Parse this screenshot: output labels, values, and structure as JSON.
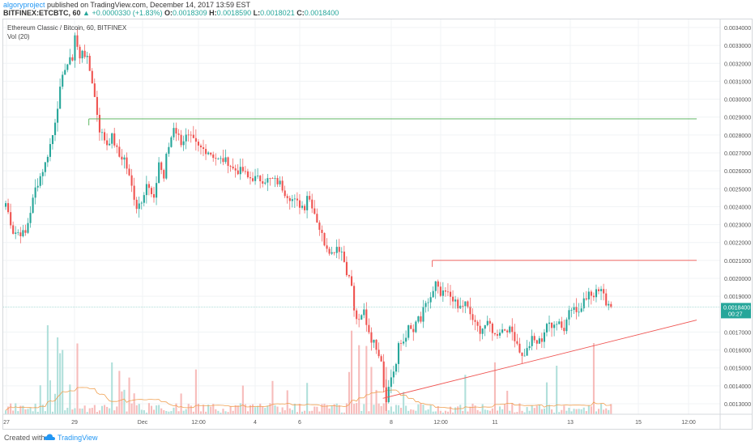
{
  "header": {
    "author": "algoryproject",
    "published": "published on TradingView.com, December 14, 2017 13:59 EST",
    "symbol_line": "BITFINEX:ETCBTC, 60",
    "change": "▲ +0.0000330 (+1.83%)",
    "o_label": "O:",
    "o_value": "0.0018309",
    "h_label": "H:",
    "h_value": "0.0018590",
    "l_label": "L:",
    "l_value": "0.0018021",
    "c_label": "C:",
    "c_value": "0.0018400"
  },
  "legend": {
    "title": "Ethereum Classic / Bitcoin, 60, BITFINEX",
    "volume": "Vol (20)"
  },
  "footer": {
    "label": "Created with",
    "brand": "TradingView",
    "logo_icon": "tradingview-cloud-icon"
  },
  "colors": {
    "up": "#26a69a",
    "down": "#ef5350",
    "resistance_green": "#4caf50",
    "resistance_red": "#ef5350",
    "trendline": "#ef5350",
    "current_price_bg": "#26a69a"
  },
  "chart_data": {
    "type": "candlestick",
    "x_ticks": [
      "27",
      "29",
      "Dec",
      "12:00",
      "4",
      "6",
      "8",
      "12:00",
      "11",
      "13",
      "15",
      "12:00"
    ],
    "y_ticks": [
      "0.0034000",
      "0.0033000",
      "0.0032000",
      "0.0031000",
      "0.0030000",
      "0.0029000",
      "0.0028000",
      "0.0027000",
      "0.0026000",
      "0.0025000",
      "0.0024000",
      "0.0023000",
      "0.0022000",
      "0.0021000",
      "0.0020000",
      "0.0019000",
      "0.0018400",
      "0.0017000",
      "0.0016000",
      "0.0015000",
      "0.0014000",
      "0.0013000"
    ],
    "ylim": [
      0.00124,
      0.00347
    ],
    "current_price": 0.00184,
    "current_price_label": "0.0018400",
    "countdown": "00:27",
    "path": [
      [
        0,
        0.00242
      ],
      [
        3,
        0.00226
      ],
      [
        8,
        0.00225
      ],
      [
        12,
        0.0025
      ],
      [
        16,
        0.00264
      ],
      [
        19,
        0.0028
      ],
      [
        22,
        0.00305
      ],
      [
        24,
        0.00318
      ],
      [
        27,
        0.00323
      ],
      [
        28,
        0.00336
      ],
      [
        30,
        0.00322
      ],
      [
        31,
        0.00328
      ],
      [
        33,
        0.00322
      ],
      [
        35,
        0.0031
      ],
      [
        38,
        0.00283
      ],
      [
        41,
        0.00275
      ],
      [
        43,
        0.00279
      ],
      [
        46,
        0.00268
      ],
      [
        48,
        0.00267
      ],
      [
        51,
        0.00251
      ],
      [
        53,
        0.0024
      ],
      [
        55,
        0.00244
      ],
      [
        57,
        0.00253
      ],
      [
        60,
        0.00243
      ],
      [
        62,
        0.00265
      ],
      [
        64,
        0.00256
      ],
      [
        65,
        0.00268
      ],
      [
        67,
        0.00279
      ],
      [
        68,
        0.00285
      ],
      [
        71,
        0.00276
      ],
      [
        73,
        0.00279
      ],
      [
        75,
        0.00278
      ],
      [
        78,
        0.00273
      ],
      [
        82,
        0.00271
      ],
      [
        86,
        0.00266
      ],
      [
        88,
        0.00266
      ],
      [
        90,
        0.00265
      ],
      [
        92,
        0.00261
      ],
      [
        94,
        0.0026
      ],
      [
        96,
        0.0026
      ],
      [
        98,
        0.00256
      ],
      [
        100,
        0.00256
      ],
      [
        104,
        0.00255
      ],
      [
        108,
        0.00255
      ],
      [
        111,
        0.00253
      ],
      [
        113,
        0.00248
      ],
      [
        116,
        0.00244
      ],
      [
        119,
        0.00241
      ],
      [
        121,
        0.0024
      ],
      [
        122,
        0.00247
      ],
      [
        124,
        0.00241
      ],
      [
        127,
        0.00228
      ],
      [
        129,
        0.0022
      ],
      [
        132,
        0.00214
      ],
      [
        134,
        0.00218
      ],
      [
        136,
        0.00215
      ],
      [
        138,
        0.00204
      ],
      [
        140,
        0.00196
      ],
      [
        141,
        0.00181
      ],
      [
        143,
        0.00175
      ],
      [
        145,
        0.00182
      ],
      [
        146,
        0.00175
      ],
      [
        148,
        0.00166
      ],
      [
        150,
        0.00162
      ],
      [
        152,
        0.00155
      ],
      [
        153,
        0.0014
      ],
      [
        154,
        0.00133
      ],
      [
        156,
        0.00145
      ],
      [
        158,
        0.00152
      ],
      [
        159,
        0.00162
      ],
      [
        161,
        0.00165
      ],
      [
        163,
        0.00172
      ],
      [
        165,
        0.0017
      ],
      [
        167,
        0.00178
      ],
      [
        168,
        0.00176
      ],
      [
        169,
        0.00182
      ],
      [
        171,
        0.00187
      ],
      [
        173,
        0.00192
      ],
      [
        174,
        0.00197
      ],
      [
        176,
        0.0019
      ],
      [
        178,
        0.00192
      ],
      [
        181,
        0.00189
      ],
      [
        183,
        0.00183
      ],
      [
        186,
        0.00186
      ],
      [
        188,
        0.0018
      ],
      [
        190,
        0.00174
      ],
      [
        192,
        0.00171
      ],
      [
        194,
        0.00174
      ],
      [
        196,
        0.00174
      ],
      [
        198,
        0.00168
      ],
      [
        200,
        0.00171
      ],
      [
        203,
        0.00172
      ],
      [
        205,
        0.0017
      ],
      [
        207,
        0.00164
      ],
      [
        209,
        0.00156
      ],
      [
        211,
        0.0016
      ],
      [
        213,
        0.00166
      ],
      [
        215,
        0.00164
      ],
      [
        217,
        0.00166
      ],
      [
        219,
        0.00175
      ],
      [
        221,
        0.00172
      ],
      [
        222,
        0.00176
      ],
      [
        224,
        0.00176
      ],
      [
        226,
        0.00171
      ],
      [
        228,
        0.00183
      ],
      [
        230,
        0.00186
      ],
      [
        231,
        0.0018
      ],
      [
        233,
        0.00183
      ],
      [
        234,
        0.00187
      ],
      [
        236,
        0.00193
      ],
      [
        238,
        0.0019
      ],
      [
        239,
        0.00196
      ],
      [
        241,
        0.00193
      ],
      [
        243,
        0.00187
      ],
      [
        245,
        0.00184
      ]
    ],
    "resistance_lines": [
      {
        "color": "green",
        "price": 0.00289,
        "from_bar": 34,
        "to_bar": 280
      },
      {
        "color": "red",
        "price": 0.0021,
        "from_bar": 173,
        "to_bar": 280
      }
    ],
    "trendline": {
      "from": [
        153,
        0.00133
      ],
      "to": [
        280,
        0.00174
      ]
    }
  }
}
